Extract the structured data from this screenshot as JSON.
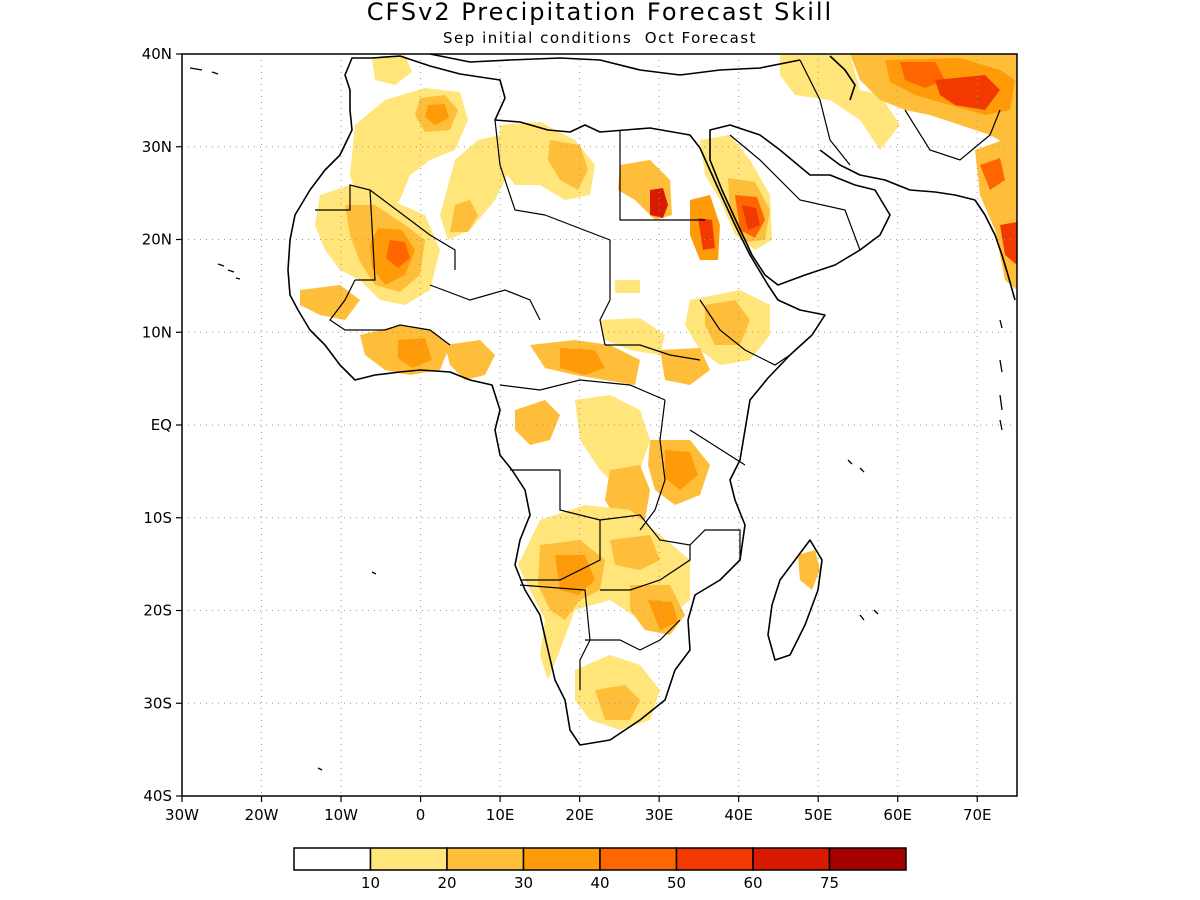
{
  "header": {
    "title": "CFSv2 Precipitation Forecast Skill",
    "subtitle": "Sep initial conditions  Oct Forecast"
  },
  "map": {
    "region": "Africa",
    "lon_range": [
      -30,
      75
    ],
    "lat_range": [
      -40,
      40
    ],
    "grid": "dotted",
    "x_ticks": [
      {
        "value": -30,
        "label": "30W"
      },
      {
        "value": -20,
        "label": "20W"
      },
      {
        "value": -10,
        "label": "10W"
      },
      {
        "value": 0,
        "label": "0"
      },
      {
        "value": 10,
        "label": "10E"
      },
      {
        "value": 20,
        "label": "20E"
      },
      {
        "value": 30,
        "label": "30E"
      },
      {
        "value": 40,
        "label": "40E"
      },
      {
        "value": 50,
        "label": "50E"
      },
      {
        "value": 60,
        "label": "60E"
      },
      {
        "value": 70,
        "label": "70E"
      }
    ],
    "y_ticks": [
      {
        "value": 40,
        "label": "40N"
      },
      {
        "value": 30,
        "label": "30N"
      },
      {
        "value": 20,
        "label": "20N"
      },
      {
        "value": 10,
        "label": "10N"
      },
      {
        "value": 0,
        "label": "EQ"
      },
      {
        "value": -10,
        "label": "10S"
      },
      {
        "value": -20,
        "label": "20S"
      },
      {
        "value": -30,
        "label": "30S"
      },
      {
        "value": -40,
        "label": "40S"
      }
    ]
  },
  "legend": {
    "boxes": [
      "#ffffff",
      "#ffe57a",
      "#ffbe3a",
      "#ff9a08",
      "#ff6600",
      "#f23a00",
      "#d81a00",
      "#a50000"
    ],
    "labels": [
      "10",
      "20",
      "30",
      "40",
      "50",
      "60",
      "75"
    ]
  },
  "colors": {
    "level1": "#ffe57a",
    "level2": "#ffbe3a",
    "level3": "#ff9a08",
    "level4": "#ff6600",
    "level5": "#f23a00",
    "level6": "#d81a00",
    "level7": "#a50000"
  }
}
